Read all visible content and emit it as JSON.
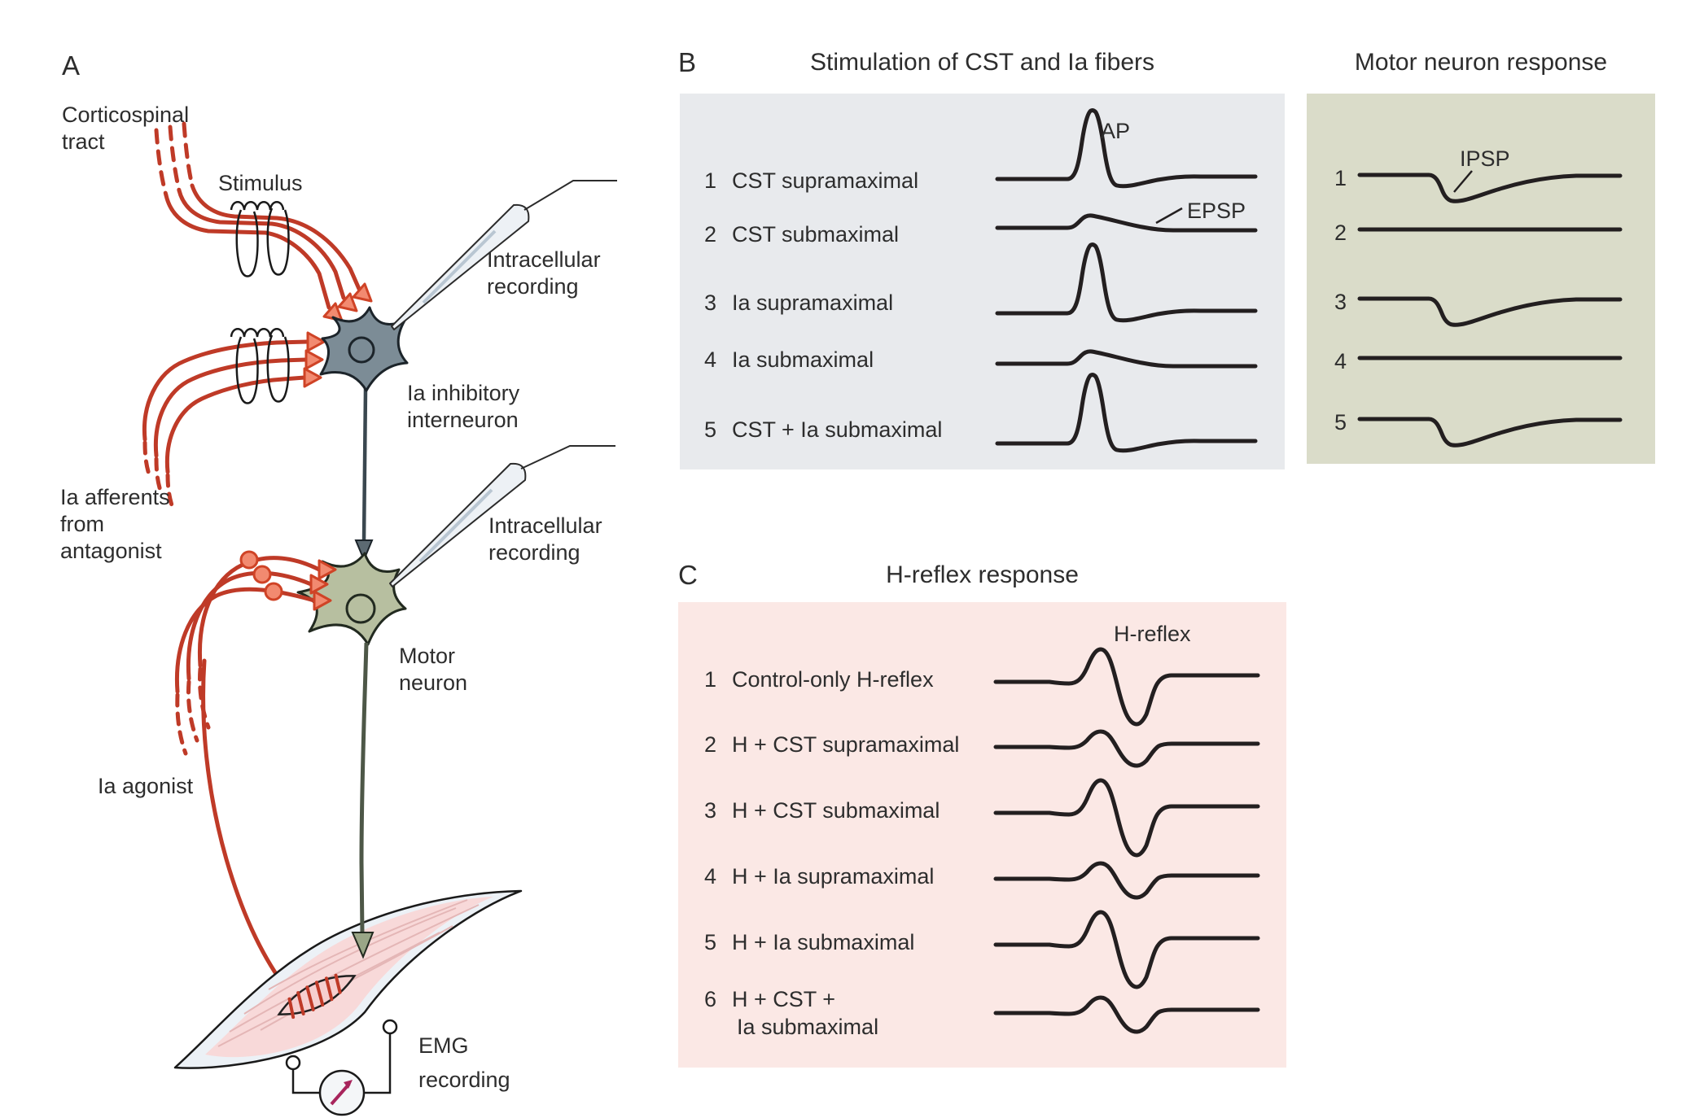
{
  "figure": {
    "name": "spinal-reflex-circuit-figure"
  },
  "colors": {
    "background": "#ffffff",
    "text": "#2d2d2d",
    "trace": "#231f20",
    "panel_b_bg": "#e8eaed",
    "motor_panel_bg": "#dadcc9",
    "panel_c_bg": "#fbe8e5",
    "fiber_red": "#bf3a27",
    "synapse_salmon": "#f28a70",
    "interneuron_gray": "#7c8c96",
    "motor_neuron_green": "#b7bfa0",
    "muscle_pink": "#f8d9d9",
    "tendon_white": "#ecf1f6",
    "emg_needle_magenta": "#a8255c"
  },
  "panelA": {
    "label": "A",
    "corticospinal_tract": [
      "Corticospinal",
      "tract"
    ],
    "stimulus": "Stimulus",
    "intracellular_recording_1": [
      "Intracellular",
      "recording"
    ],
    "ia_inhibitory_interneuron": [
      "Ia inhibitory",
      "interneuron"
    ],
    "ia_afferents_from_antagonist": [
      "Ia afferents",
      "from",
      "antagonist"
    ],
    "intracellular_recording_2": [
      "Intracellular",
      "recording"
    ],
    "motor_neuron": [
      "Motor",
      "neuron"
    ],
    "ia_agonist": "Ia agonist",
    "emg_recording": [
      "EMG",
      "recording"
    ]
  },
  "panelB": {
    "label": "B",
    "title": "Stimulation of CST and Ia fibers",
    "ap_label": "AP",
    "epsp_label": "EPSP",
    "rows": [
      {
        "num": "1",
        "label": "CST supramaximal",
        "trace": "ap"
      },
      {
        "num": "2",
        "label": "CST submaximal",
        "trace": "epsp"
      },
      {
        "num": "3",
        "label": "Ia supramaximal",
        "trace": "ap"
      },
      {
        "num": "4",
        "label": "Ia submaximal",
        "trace": "epsp"
      },
      {
        "num": "5",
        "label": "CST + Ia submaximal",
        "trace": "ap"
      }
    ]
  },
  "panelMotor": {
    "title": "Motor neuron response",
    "ipsp_label": "IPSP",
    "rows": [
      {
        "num": "1",
        "trace": "ipsp"
      },
      {
        "num": "2",
        "trace": "flat"
      },
      {
        "num": "3",
        "trace": "ipsp"
      },
      {
        "num": "4",
        "trace": "flat"
      },
      {
        "num": "5",
        "trace": "ipsp"
      }
    ]
  },
  "panelC": {
    "label": "C",
    "title": "H-reflex response",
    "hreflex_label": "H-reflex",
    "rows": [
      {
        "num": "1",
        "label": [
          "Control-only H-reflex"
        ],
        "trace": "large"
      },
      {
        "num": "2",
        "label": [
          "H + CST supramaximal"
        ],
        "trace": "small"
      },
      {
        "num": "3",
        "label": [
          "H + CST submaximal"
        ],
        "trace": "large"
      },
      {
        "num": "4",
        "label": [
          "H + Ia supramaximal"
        ],
        "trace": "small"
      },
      {
        "num": "5",
        "label": [
          "H + Ia submaximal"
        ],
        "trace": "large"
      },
      {
        "num": "6",
        "label": [
          "H + CST +",
          "Ia submaximal"
        ],
        "trace": "small"
      }
    ]
  }
}
